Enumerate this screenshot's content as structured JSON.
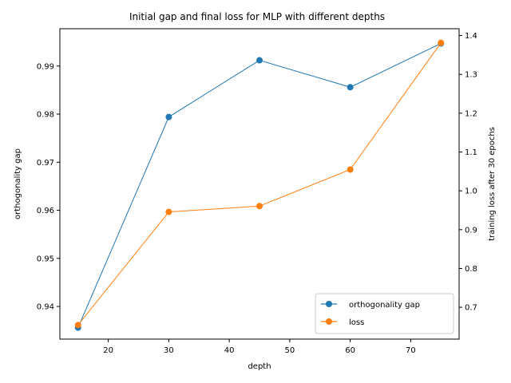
{
  "chart_data": {
    "type": "line",
    "title": "Initial gap and final loss for MLP with different depths",
    "xlabel": "depth",
    "ylabel_left": "orthogonality gap",
    "ylabel_right": "training loss after 30 epochs",
    "x": [
      15,
      30,
      45,
      60,
      75
    ],
    "xlim": [
      11.998,
      78.002
    ],
    "xticks": [
      20,
      30,
      40,
      50,
      60,
      70
    ],
    "ylim_left": [
      0.93321,
      0.99776
    ],
    "yticks_left": [
      0.94,
      0.95,
      0.96,
      0.97,
      0.98,
      0.99
    ],
    "ylim_right": [
      0.618,
      1.4176
    ],
    "yticks_right": [
      0.7,
      0.8,
      0.9,
      1.0,
      1.1,
      1.2,
      1.3,
      1.4
    ],
    "series": [
      {
        "name": "orthogonality gap",
        "axis": "left",
        "color": "#1f77b4",
        "values": [
          0.9356,
          0.9794,
          0.9912,
          0.9856,
          0.9947
        ]
      },
      {
        "name": "loss",
        "axis": "right",
        "color": "#ff7f0e",
        "values": [
          0.6543,
          0.9457,
          0.9607,
          1.0548,
          1.3813
        ]
      }
    ],
    "legend_position": "lower-right",
    "grid": false
  }
}
